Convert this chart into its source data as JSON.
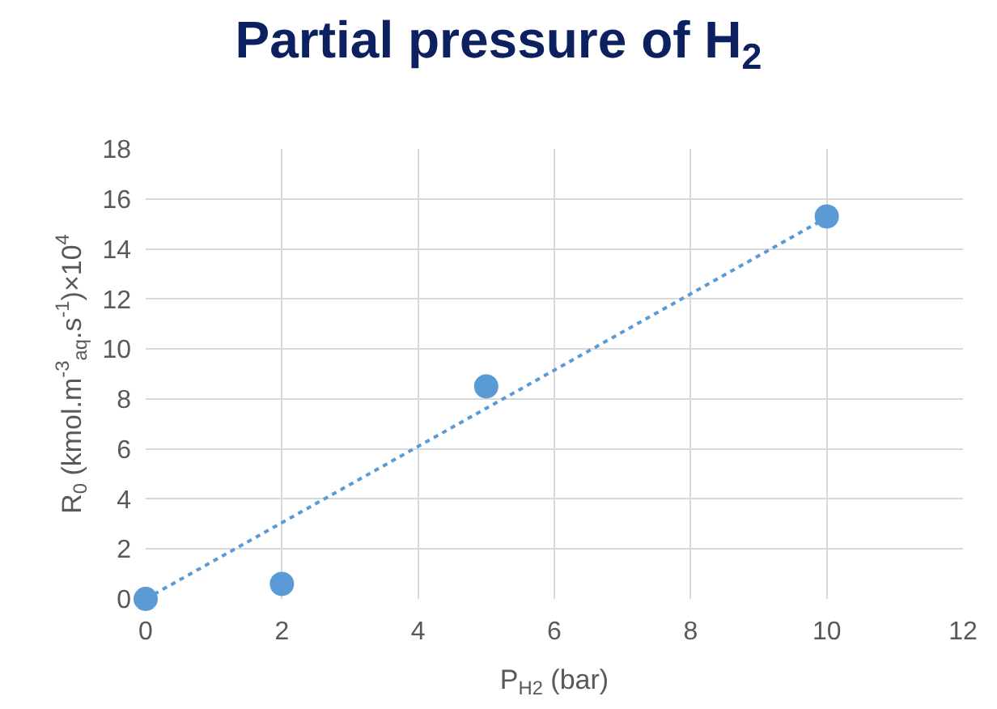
{
  "chart_data": {
    "type": "scatter",
    "title": "Partial pressure of H$_{2}$",
    "xlabel": "P$_{H2}$ (bar)",
    "ylabel": "R$_{0}$ (kmol.m$^{-3}$$_{aq}$.s$^{-1}$)×10$^{4}$",
    "series": [
      {
        "name": null,
        "color": "#5b9bd5",
        "x": [
          0,
          2,
          5,
          10
        ],
        "values": [
          0,
          0.6,
          8.5,
          15.3
        ],
        "marker": "circle"
      },
      {
        "name": null,
        "type": "line",
        "color": "#5b9bd5",
        "x": [
          0,
          10
        ],
        "values": [
          0,
          15.25
        ],
        "line_style": "dotted"
      }
    ],
    "xlim": [
      0,
      12
    ],
    "xticks": [
      0,
      2,
      4,
      6,
      8,
      10,
      12
    ],
    "ylim": [
      0,
      18
    ],
    "yticks": [
      0,
      2,
      4,
      6,
      8,
      10,
      12,
      14,
      16,
      18
    ],
    "grid": true
  }
}
